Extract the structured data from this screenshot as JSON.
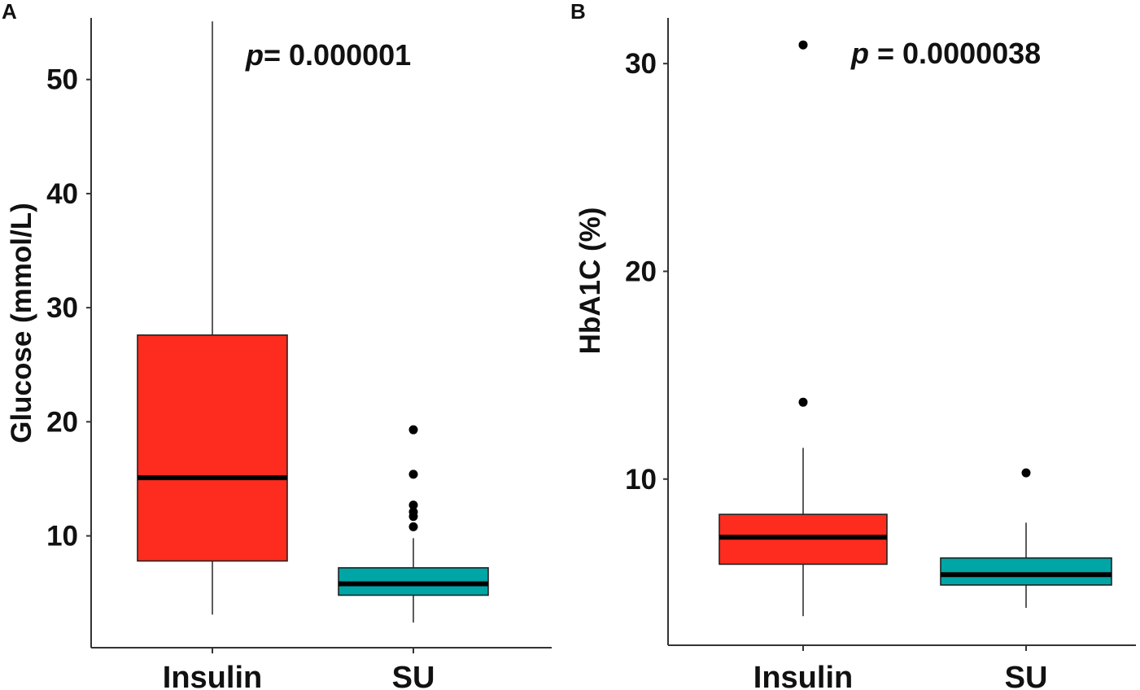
{
  "chart_data": [
    {
      "panel": "A",
      "type": "box",
      "title": "",
      "xlabel": "",
      "ylabel": "Glucose (mmol/L)",
      "ylim": [
        0.2,
        55.4
      ],
      "yticks": [
        10,
        20,
        30,
        40,
        50
      ],
      "annotation": {
        "prefix": "p",
        "value": "= 0.000001"
      },
      "categories": [
        "Insulin",
        "SU"
      ],
      "series": [
        {
          "name": "Insulin",
          "color": "#fd2c1e",
          "whisker_low": 3.1,
          "q1": 7.8,
          "median": 15.1,
          "q3": 27.6,
          "whisker_high": 55.1,
          "outliers": []
        },
        {
          "name": "SU",
          "color": "#00a5a6",
          "whisker_low": 2.4,
          "q1": 4.8,
          "median": 5.8,
          "q3": 7.2,
          "whisker_high": 9.8,
          "outliers": [
            10.8,
            11.7,
            12.1,
            12.7,
            15.4,
            19.3
          ]
        }
      ]
    },
    {
      "panel": "B",
      "type": "box",
      "title": "",
      "xlabel": "",
      "ylabel": "HbA1C (%)",
      "ylim": [
        2.0,
        32.2
      ],
      "yticks": [
        10,
        20,
        30
      ],
      "annotation": {
        "prefix": "p",
        "value": " = 0.0000038"
      },
      "categories": [
        "Insulin",
        "SU"
      ],
      "series": [
        {
          "name": "Insulin",
          "color": "#fd2c1e",
          "whisker_low": 3.4,
          "q1": 5.9,
          "median": 7.2,
          "q3": 8.3,
          "whisker_high": 11.5,
          "outliers": [
            13.7,
            30.9
          ]
        },
        {
          "name": "SU",
          "color": "#00a5a6",
          "whisker_low": 3.8,
          "q1": 4.9,
          "median": 5.4,
          "q3": 6.2,
          "whisker_high": 7.9,
          "outliers": [
            10.3
          ]
        }
      ]
    }
  ]
}
